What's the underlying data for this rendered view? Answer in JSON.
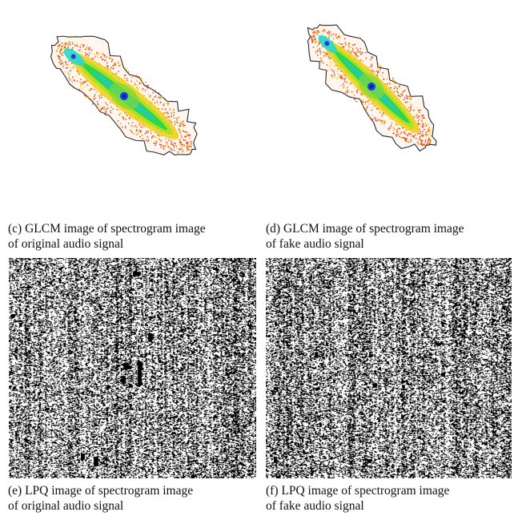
{
  "figure": {
    "panels": [
      {
        "id": "c",
        "kind": "glcm",
        "caption_line1": "(c) GLCM image of spectrogram image",
        "caption_line2": "of original audio signal"
      },
      {
        "id": "d",
        "kind": "glcm",
        "caption_line1": "(d) GLCM image of spectrogram image",
        "caption_line2": "of fake audio signal"
      },
      {
        "id": "e",
        "kind": "lpq",
        "caption_line1": "(e) LPQ image of spectrogram image",
        "caption_line2": "of original audio signal"
      },
      {
        "id": "f",
        "kind": "lpq",
        "caption_line1": "(f) LPQ image of spectrogram image",
        "caption_line2": "of fake audio signal"
      }
    ],
    "colors": {
      "outline": "#2b2b2b",
      "glcm_outer": "#e0401a",
      "glcm_mid": "#f2d21c",
      "glcm_inner": "#2fd64a",
      "glcm_core": "#22c9c0",
      "glcm_center": "#1a3fe0",
      "lpq_background": "#000000",
      "lpq_foreground": "#ffffff"
    }
  }
}
